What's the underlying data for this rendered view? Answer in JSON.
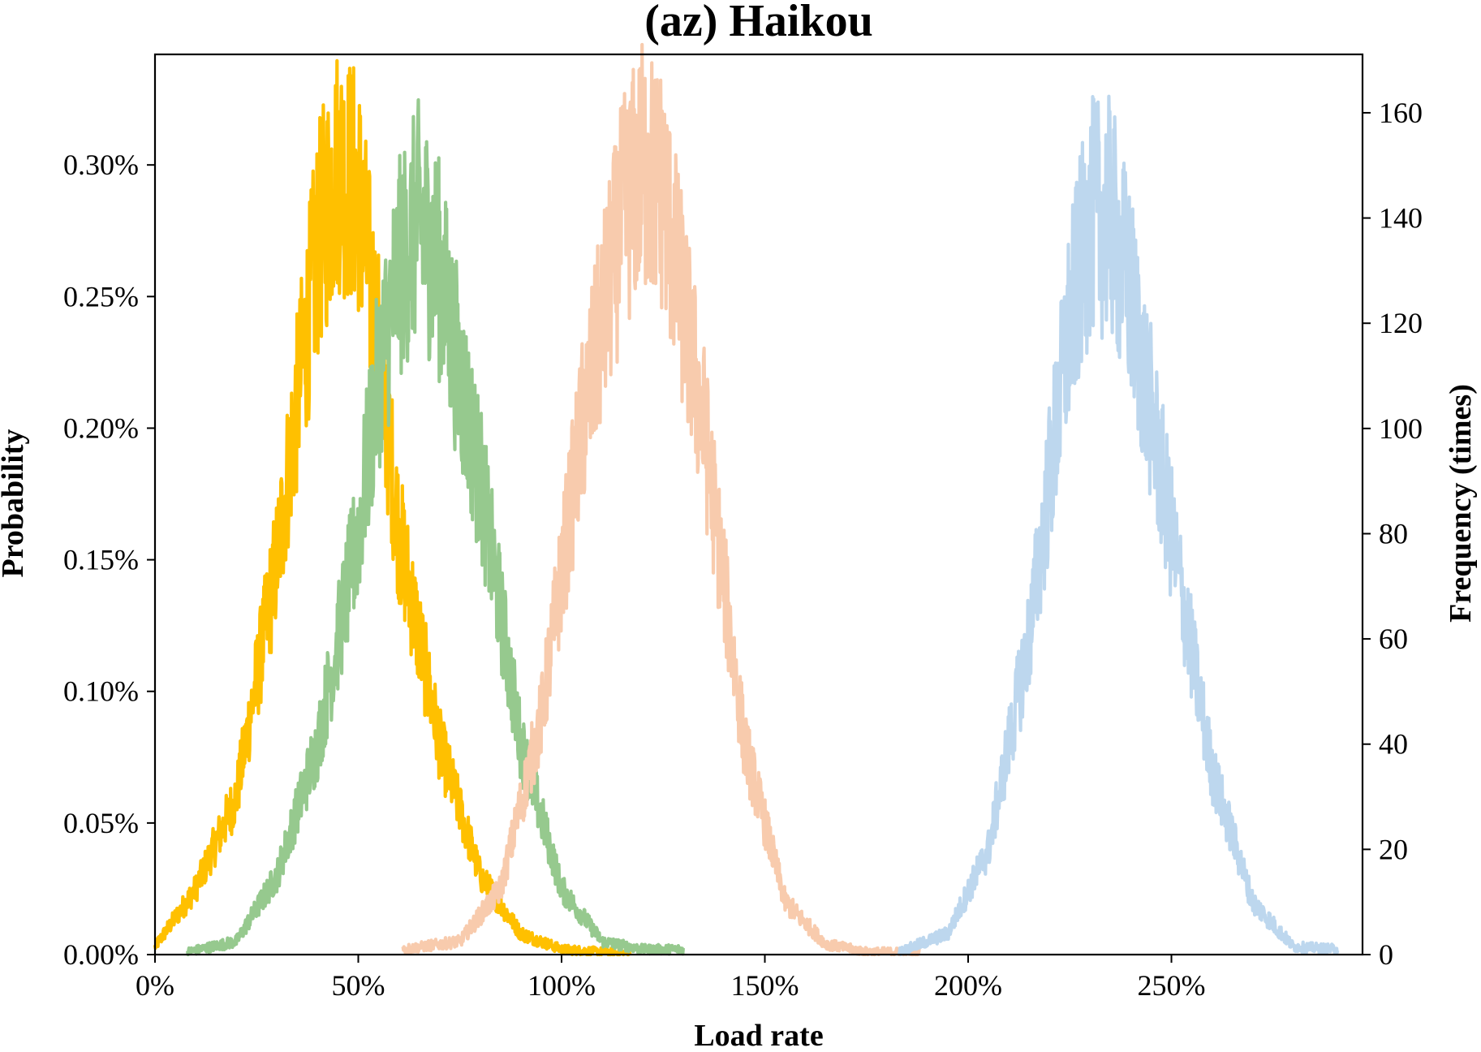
{
  "chart_data": {
    "type": "line",
    "title": "(az) Haikou",
    "xlabel": "Load rate",
    "ylabel": "Probability",
    "y2label": "Frequency (times)",
    "xlim": [
      0,
      297
    ],
    "ylim": [
      0,
      0.342
    ],
    "y2lim": [
      0,
      171.1
    ],
    "xticks": [
      0,
      50,
      100,
      150,
      200,
      250
    ],
    "xticklabels": [
      "0%",
      "50%",
      "100%",
      "150%",
      "200%",
      "250%"
    ],
    "yticks": [
      0,
      0.05,
      0.1,
      0.15,
      0.2,
      0.25,
      0.3
    ],
    "yticklabels": [
      "0.00%",
      "0.05%",
      "0.10%",
      "0.15%",
      "0.20%",
      "0.25%",
      "0.30%"
    ],
    "y2ticks": [
      0,
      20,
      40,
      60,
      80,
      100,
      120,
      140,
      160
    ],
    "y2ticklabels": [
      "0",
      "20",
      "40",
      "60",
      "80",
      "100",
      "120",
      "140",
      "160"
    ],
    "grid": false,
    "legend": "none",
    "series": [
      {
        "color": "#FFC000",
        "x": [
          0,
          10,
          20,
          30,
          40,
          45,
          50,
          55,
          60,
          70,
          80,
          90,
          100,
          110,
          117
        ],
        "y": [
          0.003,
          0.025,
          0.06,
          0.15,
          0.27,
          0.3,
          0.29,
          0.23,
          0.16,
          0.08,
          0.03,
          0.008,
          0.002,
          0.001,
          0.0005
        ]
      },
      {
        "color": "#96C98E",
        "x": [
          8,
          20,
          30,
          40,
          50,
          55,
          60,
          65,
          70,
          80,
          90,
          100,
          110,
          120,
          130
        ],
        "y": [
          0.001,
          0.005,
          0.03,
          0.08,
          0.16,
          0.22,
          0.26,
          0.28,
          0.26,
          0.18,
          0.08,
          0.025,
          0.005,
          0.002,
          0.002
        ]
      },
      {
        "color": "#F8CBAD",
        "x": [
          61,
          75,
          85,
          95,
          105,
          115,
          120,
          125,
          135,
          145,
          155,
          165,
          175,
          188
        ],
        "y": [
          0.002,
          0.005,
          0.025,
          0.09,
          0.2,
          0.28,
          0.3,
          0.29,
          0.2,
          0.08,
          0.02,
          0.004,
          0.001,
          0.001
        ]
      },
      {
        "color": "#BDD7EE",
        "x": [
          183,
          195,
          205,
          215,
          225,
          230,
          235,
          240,
          250,
          260,
          270,
          280,
          291
        ],
        "y": [
          0.001,
          0.008,
          0.04,
          0.12,
          0.24,
          0.28,
          0.28,
          0.25,
          0.16,
          0.07,
          0.02,
          0.003,
          0.002
        ]
      }
    ]
  }
}
